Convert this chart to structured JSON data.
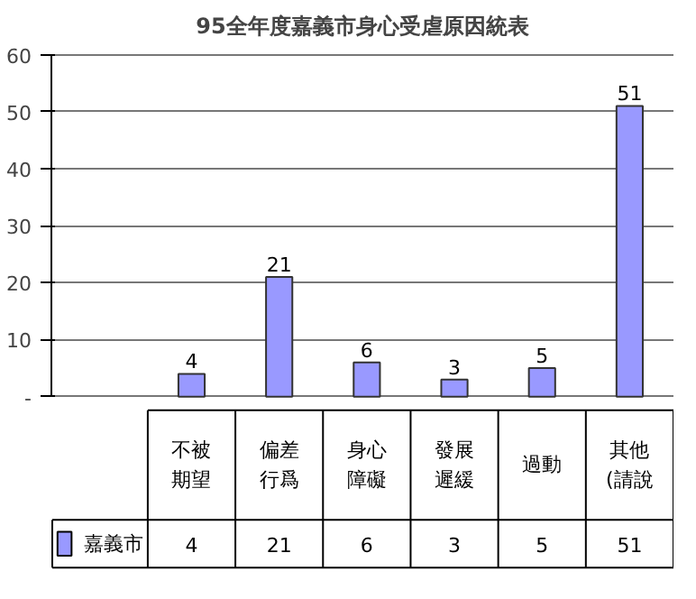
{
  "chart_data": {
    "type": "bar",
    "title": "95全年度嘉義市身心受虐原因統表",
    "categories": [
      "不被期望",
      "偏差行爲",
      "身心障礙",
      "發展遲緩",
      "過動",
      "其他(請說"
    ],
    "series": [
      {
        "name": "嘉義市",
        "color": "#9999ff",
        "values": [
          4,
          21,
          6,
          3,
          5,
          51
        ],
        "value_labels": [
          "4",
          "21",
          "6",
          "3",
          "5",
          "51"
        ]
      }
    ],
    "ylim": [
      0,
      60
    ],
    "yticks": [
      {
        "value": 0,
        "label": "-"
      },
      10,
      20,
      30,
      40,
      50,
      60
    ],
    "grid": "y",
    "annotations": [
      "4",
      "21",
      "6",
      "3",
      "5",
      "51"
    ]
  }
}
